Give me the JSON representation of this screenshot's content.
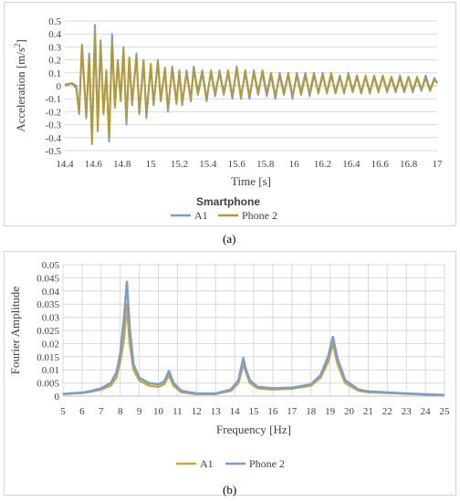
{
  "chart_data": [
    {
      "type": "line",
      "panel_label": "(a)",
      "title": "",
      "xlabel": "Time [s]",
      "ylabel": "Acceleration [m/s",
      "ylabel_sup": "2",
      "ylabel_end": "]",
      "xlim": [
        14.4,
        17
      ],
      "ylim": [
        -0.5,
        0.5
      ],
      "xticks": [
        14.4,
        14.6,
        14.8,
        15,
        15.2,
        15.4,
        15.6,
        15.8,
        16,
        16.2,
        16.4,
        16.6,
        16.8,
        17
      ],
      "yticks": [
        -0.5,
        -0.4,
        -0.3,
        -0.2,
        -0.1,
        0,
        0.1,
        0.2,
        0.3,
        0.4,
        0.5
      ],
      "grid": "horizontal",
      "legend_title": "Smartphone",
      "legend_position": "bottom",
      "series": [
        {
          "name": "A1",
          "color": "#7b9bd1",
          "x": [
            14.4,
            14.45,
            14.48,
            14.5,
            14.52,
            14.55,
            14.57,
            14.59,
            14.61,
            14.63,
            14.65,
            14.67,
            14.69,
            14.71,
            14.73,
            14.75,
            14.77,
            14.79,
            14.81,
            14.83,
            14.85,
            14.87,
            14.9,
            14.92,
            14.95,
            14.97,
            15.0,
            15.02,
            15.05,
            15.07,
            15.1,
            15.12,
            15.15,
            15.18,
            15.2,
            15.22,
            15.25,
            15.28,
            15.3,
            15.33,
            15.36,
            15.39,
            15.42,
            15.45,
            15.48,
            15.51,
            15.54,
            15.57,
            15.6,
            15.63,
            15.66,
            15.69,
            15.72,
            15.75,
            15.78,
            15.81,
            15.84,
            15.87,
            15.9,
            15.93,
            15.96,
            15.99,
            16.02,
            16.05,
            16.08,
            16.11,
            16.14,
            16.17,
            16.2,
            16.23,
            16.26,
            16.29,
            16.32,
            16.35,
            16.38,
            16.41,
            16.44,
            16.47,
            16.5,
            16.53,
            16.56,
            16.59,
            16.62,
            16.65,
            16.68,
            16.71,
            16.74,
            16.77,
            16.8,
            16.83,
            16.86,
            16.89,
            16.92,
            16.95,
            16.98,
            17.0
          ],
          "y": [
            0.01,
            0.02,
            0.0,
            -0.2,
            0.3,
            -0.25,
            0.25,
            -0.4,
            0.47,
            -0.3,
            0.35,
            -0.2,
            0.1,
            -0.43,
            0.4,
            -0.15,
            0.2,
            -0.1,
            0.3,
            -0.3,
            0.2,
            -0.15,
            0.25,
            -0.2,
            0.2,
            -0.25,
            0.15,
            -0.15,
            0.2,
            -0.1,
            0.12,
            -0.2,
            0.15,
            -0.12,
            0.1,
            -0.15,
            0.12,
            -0.1,
            0.15,
            -0.05,
            0.12,
            -0.1,
            0.1,
            -0.08,
            0.12,
            -0.05,
            0.1,
            -0.1,
            0.15,
            -0.08,
            0.1,
            -0.1,
            0.12,
            -0.05,
            0.1,
            -0.08,
            0.08,
            -0.1,
            0.1,
            -0.05,
            0.08,
            -0.1,
            0.1,
            -0.05,
            0.1,
            -0.08,
            0.08,
            -0.05,
            0.1,
            -0.06,
            0.08,
            -0.05,
            0.08,
            -0.06,
            0.1,
            -0.04,
            0.08,
            -0.05,
            0.07,
            -0.06,
            0.08,
            -0.04,
            0.07,
            -0.05,
            0.06,
            -0.05,
            0.08,
            -0.04,
            0.07,
            -0.05,
            0.06,
            -0.04,
            0.08,
            -0.03,
            0.06,
            0.02
          ]
        },
        {
          "name": "Phone 2",
          "color": "#b39a34",
          "x": [
            14.4,
            14.45,
            14.48,
            14.5,
            14.52,
            14.55,
            14.57,
            14.59,
            14.61,
            14.63,
            14.65,
            14.67,
            14.69,
            14.71,
            14.73,
            14.75,
            14.77,
            14.79,
            14.81,
            14.83,
            14.85,
            14.87,
            14.9,
            14.92,
            14.95,
            14.97,
            15.0,
            15.02,
            15.05,
            15.07,
            15.1,
            15.12,
            15.15,
            15.18,
            15.2,
            15.22,
            15.25,
            15.28,
            15.3,
            15.33,
            15.36,
            15.39,
            15.42,
            15.45,
            15.48,
            15.51,
            15.54,
            15.57,
            15.6,
            15.63,
            15.66,
            15.69,
            15.72,
            15.75,
            15.78,
            15.81,
            15.84,
            15.87,
            15.9,
            15.93,
            15.96,
            15.99,
            16.02,
            16.05,
            16.08,
            16.11,
            16.14,
            16.17,
            16.2,
            16.23,
            16.26,
            16.29,
            16.32,
            16.35,
            16.38,
            16.41,
            16.44,
            16.47,
            16.5,
            16.53,
            16.56,
            16.59,
            16.62,
            16.65,
            16.68,
            16.71,
            16.74,
            16.77,
            16.8,
            16.83,
            16.86,
            16.89,
            16.92,
            16.95,
            16.98,
            17.0
          ],
          "y": [
            0.0,
            0.02,
            -0.02,
            -0.22,
            0.32,
            -0.23,
            0.22,
            -0.45,
            0.4,
            -0.35,
            0.32,
            -0.22,
            0.12,
            -0.4,
            0.33,
            -0.17,
            0.18,
            -0.12,
            0.28,
            -0.27,
            0.22,
            -0.13,
            0.22,
            -0.22,
            0.18,
            -0.22,
            0.17,
            -0.13,
            0.18,
            -0.12,
            0.14,
            -0.18,
            0.13,
            -0.14,
            0.12,
            -0.13,
            0.1,
            -0.12,
            0.13,
            -0.07,
            0.1,
            -0.12,
            0.12,
            -0.06,
            0.1,
            -0.07,
            0.12,
            -0.08,
            0.13,
            -0.1,
            0.12,
            -0.08,
            0.1,
            -0.07,
            0.12,
            -0.06,
            0.1,
            -0.08,
            0.08,
            -0.07,
            0.1,
            -0.08,
            0.08,
            -0.07,
            0.08,
            -0.06,
            0.1,
            -0.06,
            0.08,
            -0.05,
            0.1,
            -0.06,
            0.07,
            -0.05,
            0.08,
            -0.05,
            0.07,
            -0.06,
            0.08,
            -0.05,
            0.07,
            -0.05,
            0.08,
            -0.04,
            0.07,
            -0.04,
            0.06,
            -0.05,
            0.07,
            -0.04,
            0.07,
            -0.03,
            0.06,
            -0.04,
            0.05,
            0.02
          ]
        }
      ]
    },
    {
      "type": "line",
      "panel_label": "(b)",
      "title": "",
      "xlabel": "Frequency [Hz]",
      "ylabel": "Fourier Amplitude",
      "xlim": [
        5,
        25
      ],
      "ylim": [
        0,
        0.05
      ],
      "xticks": [
        5,
        6,
        7,
        8,
        9,
        10,
        11,
        12,
        13,
        14,
        15,
        16,
        17,
        18,
        19,
        20,
        21,
        22,
        23,
        24,
        25
      ],
      "yticks": [
        0,
        0.005,
        0.01,
        0.015,
        0.02,
        0.025,
        0.03,
        0.035,
        0.04,
        0.045,
        0.05
      ],
      "grid": "both",
      "legend_position": "bottom",
      "series": [
        {
          "name": "A1",
          "color": "#c9a83a",
          "x": [
            5,
            5.5,
            6,
            6.5,
            7,
            7.5,
            7.8,
            8.0,
            8.2,
            8.35,
            8.5,
            8.7,
            9.0,
            9.5,
            10.0,
            10.3,
            10.55,
            10.8,
            11.2,
            12,
            13,
            13.8,
            14.2,
            14.45,
            14.6,
            14.8,
            15.2,
            16,
            17,
            18,
            18.5,
            18.9,
            19.15,
            19.4,
            19.8,
            20.5,
            21,
            22,
            23,
            24,
            25
          ],
          "y": [
            0.0008,
            0.001,
            0.0012,
            0.0017,
            0.0025,
            0.004,
            0.007,
            0.013,
            0.022,
            0.035,
            0.02,
            0.01,
            0.006,
            0.004,
            0.0035,
            0.0045,
            0.008,
            0.004,
            0.0015,
            0.0008,
            0.0008,
            0.002,
            0.005,
            0.012,
            0.009,
            0.005,
            0.003,
            0.0025,
            0.0028,
            0.004,
            0.007,
            0.013,
            0.02,
            0.012,
            0.005,
            0.002,
            0.0015,
            0.0012,
            0.0009,
            0.0006,
            0.0003
          ]
        },
        {
          "name": "Phone 2",
          "color": "#7b9bd1",
          "x": [
            5,
            5.5,
            6,
            6.5,
            7,
            7.5,
            7.8,
            8.0,
            8.2,
            8.35,
            8.5,
            8.7,
            9.0,
            9.5,
            10.0,
            10.3,
            10.55,
            10.8,
            11.2,
            12,
            13,
            13.8,
            14.2,
            14.45,
            14.6,
            14.8,
            15.2,
            16,
            17,
            18,
            18.5,
            18.9,
            19.15,
            19.4,
            19.8,
            20.5,
            21,
            22,
            23,
            24,
            25
          ],
          "y": [
            0.0008,
            0.0011,
            0.0013,
            0.002,
            0.003,
            0.005,
            0.009,
            0.016,
            0.03,
            0.0435,
            0.026,
            0.012,
            0.007,
            0.005,
            0.0045,
            0.0055,
            0.0095,
            0.005,
            0.002,
            0.001,
            0.001,
            0.0025,
            0.006,
            0.0145,
            0.01,
            0.006,
            0.0035,
            0.003,
            0.0032,
            0.0045,
            0.008,
            0.015,
            0.0225,
            0.014,
            0.006,
            0.0025,
            0.0018,
            0.0014,
            0.001,
            0.0007,
            0.0004
          ]
        }
      ]
    }
  ]
}
